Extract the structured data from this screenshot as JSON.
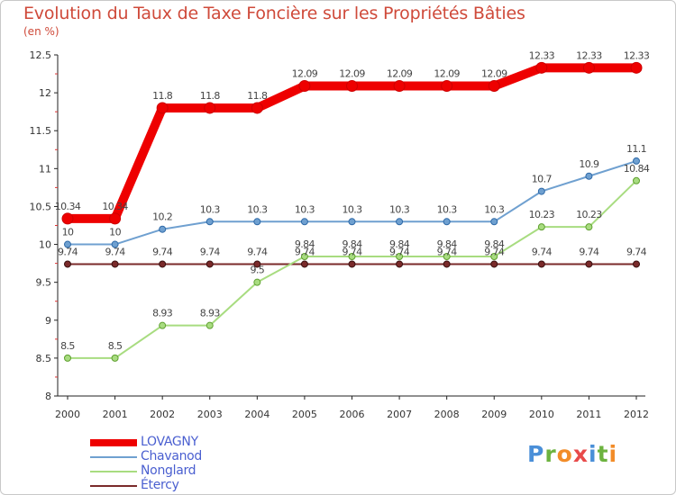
{
  "chart_data": {
    "type": "line",
    "title": "Evolution du Taux de Taxe Foncière sur les Propriétés Bâties",
    "subtitle": "(en %)",
    "x": [
      "2000",
      "2001",
      "2002",
      "2003",
      "2004",
      "2005",
      "2006",
      "2007",
      "2008",
      "2009",
      "2010",
      "2011",
      "2012"
    ],
    "ylim": [
      8,
      12.5
    ],
    "yticks": [
      "8",
      "8.5",
      "9",
      "9.5",
      "10",
      "10.5",
      "11",
      "11.5",
      "12",
      "12.5"
    ],
    "grid": false,
    "series": [
      {
        "name": "LOVAGNY",
        "color": "#ee0000",
        "values": [
          10.34,
          10.34,
          11.8,
          11.8,
          11.8,
          12.09,
          12.09,
          12.09,
          12.09,
          12.09,
          12.33,
          12.33,
          12.33
        ],
        "labels": [
          "10.34",
          "10.34",
          "11.8",
          "11.8",
          "11.8",
          "12.09",
          "12.09",
          "12.09",
          "12.09",
          "12.09",
          "12.33",
          "12.33",
          "12.33"
        ]
      },
      {
        "name": "Chavanod",
        "color": "#6fa0d0",
        "values": [
          10,
          10,
          10.2,
          10.3,
          10.3,
          10.3,
          10.3,
          10.3,
          10.3,
          10.3,
          10.7,
          10.9,
          11.1
        ],
        "labels": [
          "10",
          "10",
          "10.2",
          "10.3",
          "10.3",
          "10.3",
          "10.3",
          "10.3",
          "10.3",
          "10.3",
          "10.7",
          "10.9",
          "11.1"
        ]
      },
      {
        "name": "Nonglard",
        "color": "#a8dc80",
        "values": [
          8.5,
          8.5,
          8.93,
          8.93,
          9.5,
          9.84,
          9.84,
          9.84,
          9.84,
          9.84,
          10.23,
          10.23,
          10.84
        ],
        "labels": [
          "8.5",
          "8.5",
          "8.93",
          "8.93",
          "9.5",
          "9.84",
          "9.84",
          "9.84",
          "9.84",
          "9.84",
          "10.23",
          "10.23",
          "10.84"
        ]
      },
      {
        "name": "Étercy",
        "color": "#7a2a2a",
        "values": [
          9.74,
          9.74,
          9.74,
          9.74,
          9.74,
          9.74,
          9.74,
          9.74,
          9.74,
          9.74,
          9.74,
          9.74,
          9.74
        ],
        "labels": [
          "9.74",
          "9.74",
          "9.74",
          "9.74",
          "9.74",
          "9.74",
          "9.74",
          "9.74",
          "9.74",
          "9.74",
          "9.74",
          "9.74",
          "9.74"
        ]
      }
    ]
  },
  "brand": {
    "logo_letters": [
      "P",
      "r",
      "o",
      "x",
      "i",
      "t",
      "i"
    ],
    "logo_colors": [
      "#4a8fd8",
      "#6cb33f",
      "#f28c28",
      "#e84a4a",
      "#4a8fd8",
      "#6cb33f",
      "#f28c28"
    ]
  }
}
